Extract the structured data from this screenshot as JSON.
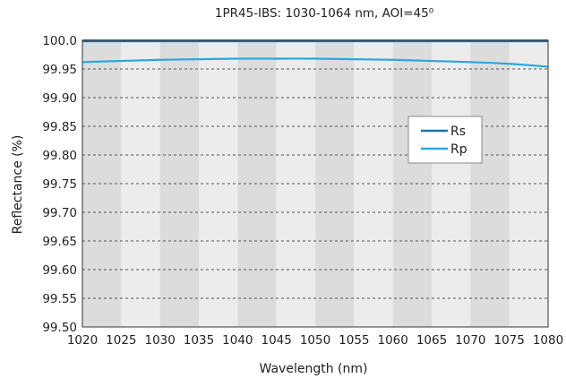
{
  "chart_data": {
    "type": "line",
    "title": "1PR45-IBS: 1030-1064 nm, AOI=45⁰",
    "xlabel": "Wavelength (nm)",
    "ylabel": "Reflectance (%)",
    "xlim": [
      1020,
      1080
    ],
    "ylim": [
      99.5,
      100.0
    ],
    "x_ticks": [
      1020,
      1025,
      1030,
      1035,
      1040,
      1045,
      1050,
      1055,
      1060,
      1065,
      1070,
      1075,
      1080
    ],
    "y_ticks": [
      "99.50",
      "99.55",
      "99.60",
      "99.65",
      "99.70",
      "99.75",
      "99.80",
      "99.85",
      "99.90",
      "99.95",
      "100.0"
    ],
    "grid": "horizontal dashed, alternating vertical bands",
    "legend_position": "center-right",
    "series": [
      {
        "name": "Rs",
        "color": "#1f6fb0",
        "x": [
          1020,
          1025,
          1030,
          1035,
          1040,
          1045,
          1050,
          1055,
          1060,
          1065,
          1070,
          1075,
          1080
        ],
        "y": [
          99.999,
          99.999,
          99.999,
          99.999,
          99.999,
          99.999,
          99.999,
          99.999,
          99.999,
          99.999,
          99.999,
          99.999,
          99.999
        ]
      },
      {
        "name": "Rp",
        "color": "#2aa8e0",
        "x": [
          1020,
          1025,
          1030,
          1035,
          1040,
          1045,
          1050,
          1055,
          1060,
          1065,
          1070,
          1075,
          1080
        ],
        "y": [
          99.962,
          99.964,
          99.966,
          99.967,
          99.968,
          99.968,
          99.968,
          99.967,
          99.966,
          99.964,
          99.962,
          99.959,
          99.954
        ]
      }
    ]
  }
}
